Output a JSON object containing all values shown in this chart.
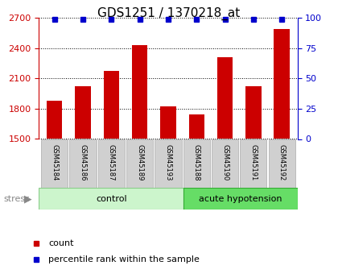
{
  "title": "GDS1251 / 1370218_at",
  "samples": [
    "GSM45184",
    "GSM45186",
    "GSM45187",
    "GSM45189",
    "GSM45193",
    "GSM45188",
    "GSM45190",
    "GSM45191",
    "GSM45192"
  ],
  "counts": [
    1880,
    2020,
    2175,
    2430,
    1820,
    1740,
    2310,
    2020,
    2590
  ],
  "percentiles": [
    99,
    99,
    99,
    99,
    99,
    99,
    99,
    99,
    99
  ],
  "ylim_left": [
    1500,
    2700
  ],
  "ylim_right": [
    0,
    100
  ],
  "yticks_left": [
    1500,
    1800,
    2100,
    2400,
    2700
  ],
  "yticks_right": [
    0,
    25,
    50,
    75,
    100
  ],
  "bar_color": "#cc0000",
  "percentile_color": "#0000cc",
  "background_color": "#ffffff",
  "sample_box_color": "#d0d0d0",
  "sample_box_edge": "#aaaaaa",
  "control_color": "#ccf5cc",
  "control_edge": "#88cc88",
  "acute_color": "#66dd66",
  "acute_edge": "#33aa33",
  "control_label": "control",
  "acute_label": "acute hypotension",
  "stress_label": "stress",
  "n_control": 5,
  "n_acute": 4,
  "legend_count_label": "count",
  "legend_pct_label": "percentile rank within the sample",
  "title_fontsize": 11,
  "axis_fontsize": 8,
  "sample_fontsize": 6,
  "group_fontsize": 8,
  "stress_fontsize": 8,
  "legend_fontsize": 8
}
